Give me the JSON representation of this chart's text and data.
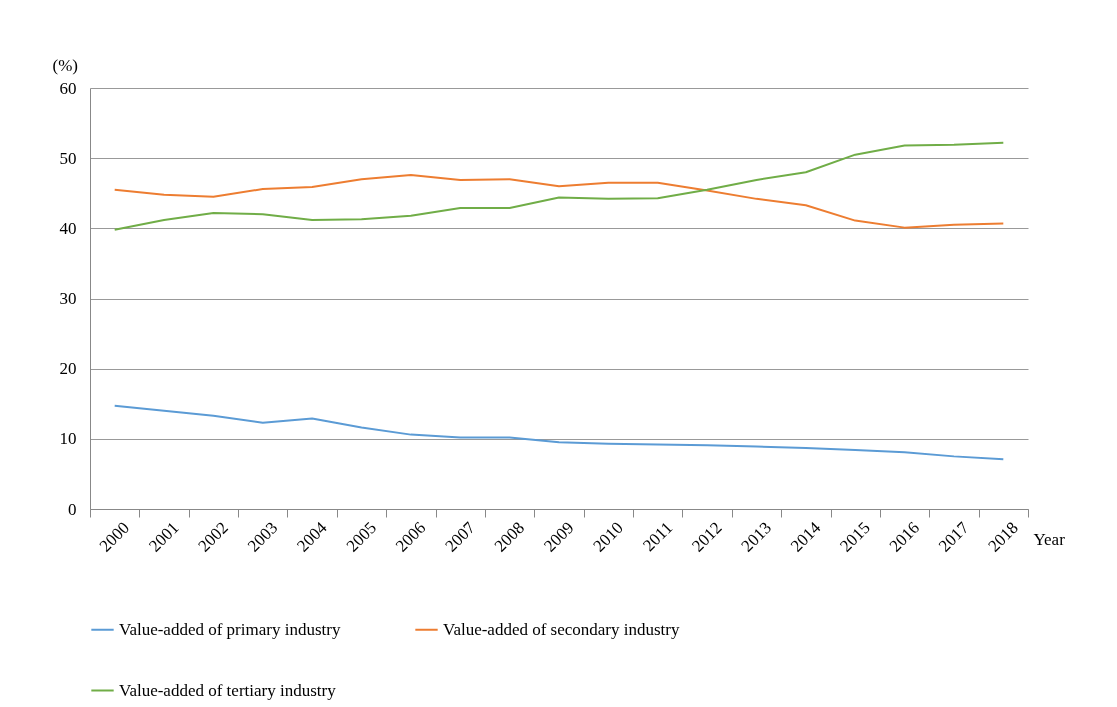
{
  "chart_data": {
    "type": "line",
    "xlabel": "Year",
    "ylabel": "(%)",
    "categories": [
      "2000",
      "2001",
      "2002",
      "2003",
      "2004",
      "2005",
      "2006",
      "2007",
      "2008",
      "2009",
      "2010",
      "2011",
      "2012",
      "2013",
      "2014",
      "2015",
      "2016",
      "2017",
      "2018"
    ],
    "series": [
      {
        "name": "Value-added of primary industry",
        "color": "#5b9bd5",
        "values": [
          14.7,
          14.0,
          13.3,
          12.3,
          12.9,
          11.6,
          10.6,
          10.2,
          10.2,
          9.5,
          9.3,
          9.2,
          9.1,
          8.9,
          8.7,
          8.4,
          8.1,
          7.5,
          7.1
        ]
      },
      {
        "name": "Value-added of secondary industry",
        "color": "#ed7d31",
        "values": [
          45.5,
          44.8,
          44.5,
          45.6,
          45.9,
          47.0,
          47.6,
          46.9,
          47.0,
          46.0,
          46.5,
          46.5,
          45.4,
          44.2,
          43.3,
          41.1,
          40.1,
          40.5,
          40.7
        ]
      },
      {
        "name": "Value-added of tertiary industry",
        "color": "#70ad47",
        "values": [
          39.8,
          41.2,
          42.2,
          42.0,
          41.2,
          41.3,
          41.8,
          42.9,
          42.9,
          44.4,
          44.2,
          44.3,
          45.5,
          46.9,
          48.0,
          50.5,
          51.8,
          51.9,
          52.2
        ]
      }
    ],
    "ylim": [
      0,
      60
    ],
    "yticks": [
      0,
      10,
      20,
      30,
      40,
      50,
      60
    ],
    "grid": "y",
    "legend": "bottom"
  }
}
